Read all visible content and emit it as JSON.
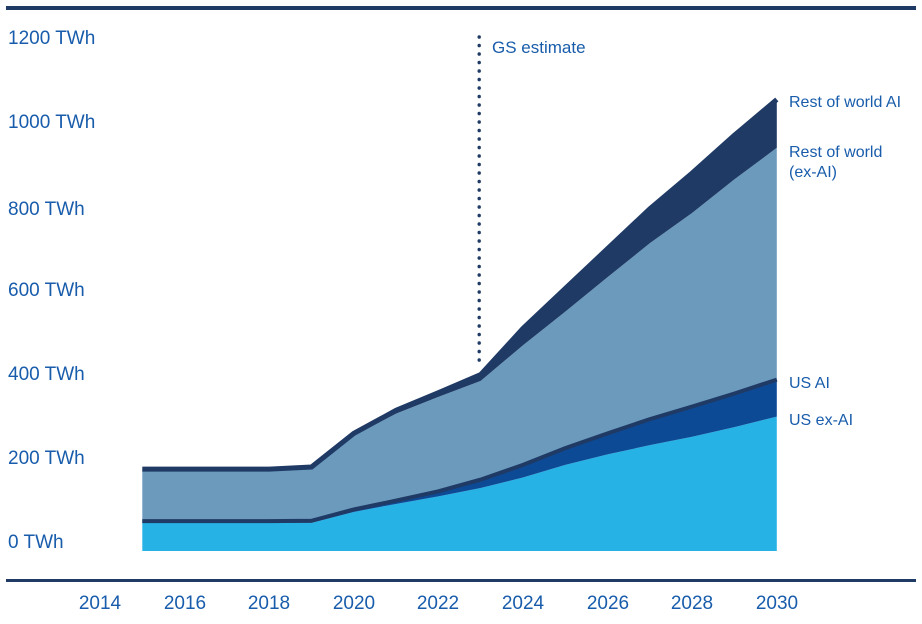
{
  "axes": {
    "y_ticks": [
      "1200 TWh",
      "1000 TWh",
      "800 TWh",
      "600 TWh",
      "400 TWh",
      "200 TWh",
      "0 TWh"
    ],
    "x_ticks": [
      "2014",
      "2016",
      "2018",
      "2020",
      "2022",
      "2024",
      "2026",
      "2028",
      "2030"
    ]
  },
  "colors": {
    "navy": "#1F3A64",
    "royal": "#0D4A96",
    "steel": "#6B9ABD",
    "cyan": "#27B2E5",
    "label_blue": "#185CAB",
    "background": "#FFFFFF"
  },
  "chart_data": {
    "type": "area",
    "stacked": true,
    "title": "",
    "unit": "TWh",
    "xlabel": "",
    "ylabel": "TWh",
    "x_axis": {
      "range": [
        2014,
        2030
      ],
      "tick_step": 2
    },
    "y_axis": {
      "range": [
        0,
        1200
      ],
      "tick_step": 200,
      "unit": "TWh"
    },
    "grid": false,
    "legend_position": "right-annotated",
    "forecast_divider": {
      "label": "GS estimate",
      "year": 2023
    },
    "years": [
      2015,
      2016,
      2017,
      2018,
      2019,
      2020,
      2021,
      2022,
      2023,
      2024,
      2025,
      2026,
      2027,
      2028,
      2029,
      2030
    ],
    "series": [
      {
        "id": "us-ex-ai",
        "name": "US ex-AI",
        "color": "#27B2E5",
        "values": [
          67,
          67,
          67,
          67,
          67,
          93,
          112,
          130,
          150,
          175,
          205,
          230,
          252,
          272,
          295,
          320
        ]
      },
      {
        "id": "us-ai",
        "name": "US AI",
        "color": "#0D4A96",
        "values": [
          4,
          4,
          4,
          4,
          5,
          6,
          8,
          12,
          20,
          30,
          40,
          50,
          62,
          72,
          80,
          88
        ]
      },
      {
        "id": "rest-of-world-ex-ai",
        "name": "Rest of world (ex-AI)",
        "color": "#6B9ABD",
        "values": [
          124,
          124,
          124,
          124,
          126,
          176,
          207,
          225,
          235,
          285,
          325,
          372,
          419,
          461,
          510,
          552
        ]
      },
      {
        "id": "rest-of-world-ai",
        "name": "Rest of world AI",
        "color": "#1F3A64",
        "values": [
          0,
          0,
          0,
          0,
          2,
          5,
          8,
          10,
          15,
          40,
          55,
          68,
          82,
          95,
          105,
          115
        ]
      }
    ],
    "totals_by_year": [
      195,
      195,
      195,
      195,
      200,
      280,
      335,
      377,
      420,
      530,
      625,
      720,
      815,
      900,
      990,
      1075
    ]
  }
}
